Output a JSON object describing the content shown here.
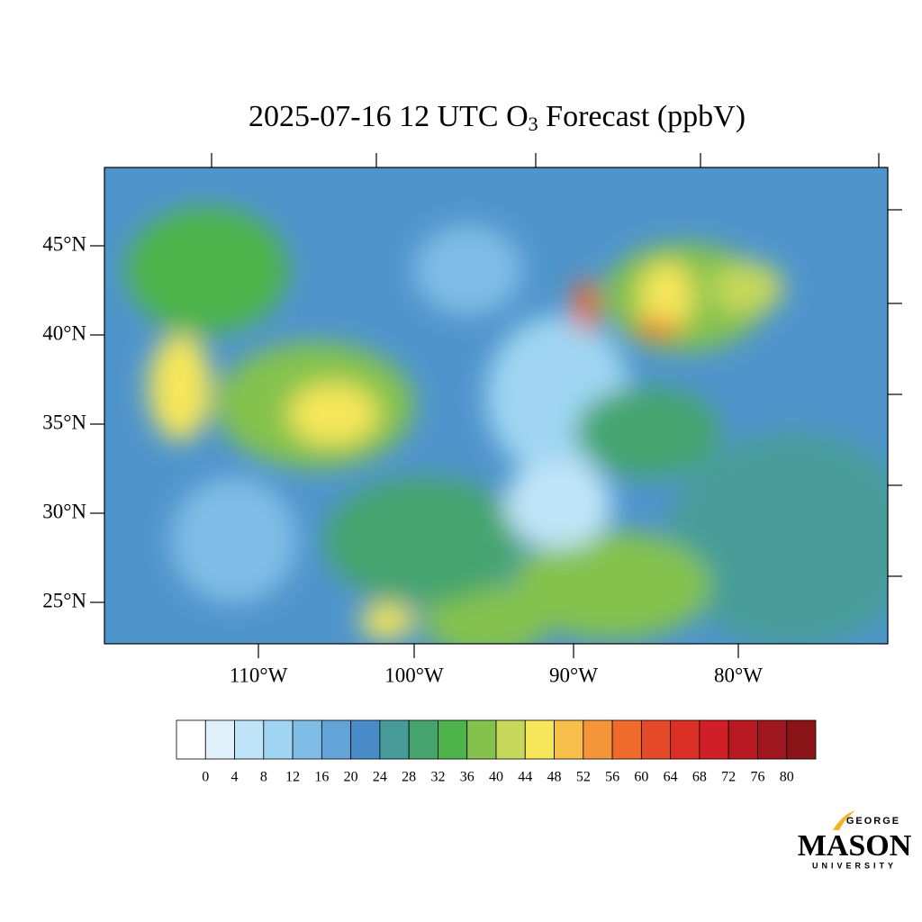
{
  "header": {
    "title": {
      "text_before": "2025-07-16 12 UTC O",
      "subscript": "3",
      "text_after": " Forecast (ppbV)"
    }
  },
  "map": {
    "lat_labels": [
      "45°N",
      "40°N",
      "35°N",
      "30°N",
      "25°N"
    ],
    "lon_labels": [
      "110°W",
      "100°W",
      "90°W",
      "80°W"
    ]
  },
  "colorbar": {
    "levels": [
      "0",
      "4",
      "8",
      "12",
      "16",
      "20",
      "24",
      "28",
      "32",
      "36",
      "40",
      "44",
      "48",
      "52",
      "56",
      "60",
      "64",
      "68",
      "72",
      "76",
      "80"
    ],
    "colors": [
      "#ffffff",
      "#dff0fa",
      "#bfe4f7",
      "#9fd5f2",
      "#80bde6",
      "#62a3d8",
      "#4a8cc8",
      "#479c9a",
      "#45a46e",
      "#4bb34a",
      "#84c24d",
      "#c5d85a",
      "#f5e65a",
      "#f7be4a",
      "#f5953a",
      "#f06a2c",
      "#e54a28",
      "#dc3026",
      "#d01f26",
      "#b81a22",
      "#a0181f",
      "#8b1419"
    ]
  },
  "logo": {
    "top": "GEORGE",
    "main": "MASON",
    "bottom": "UNIVERSITY"
  }
}
